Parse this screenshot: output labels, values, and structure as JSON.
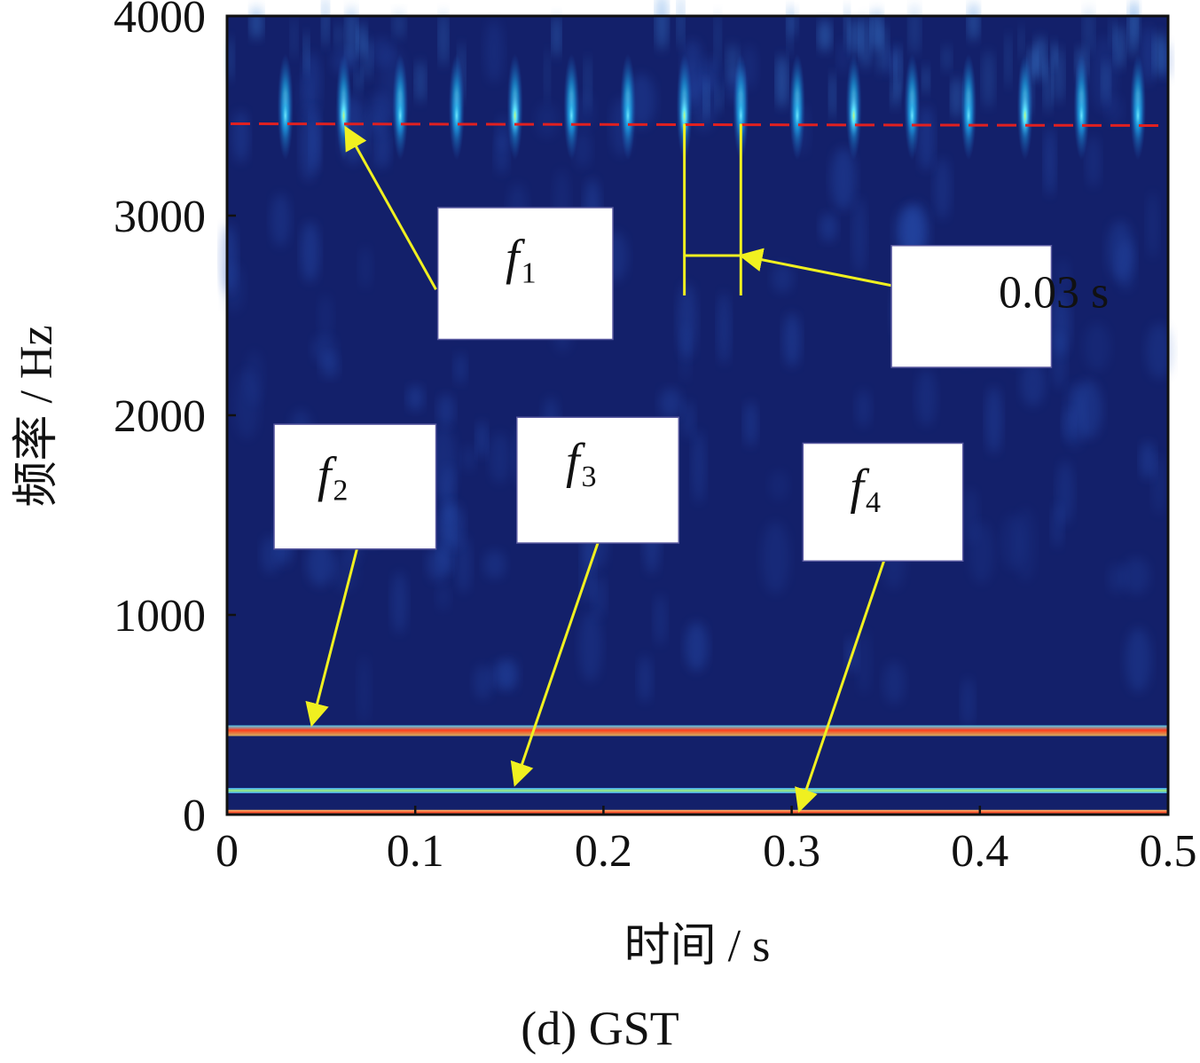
{
  "caption": "(d) GST",
  "chart_data": {
    "type": "heatmap",
    "title": "",
    "xlabel": "时间 / s",
    "ylabel": "频率 / Hz",
    "xlim": [
      0,
      0.5
    ],
    "ylim": [
      0,
      4000
    ],
    "x_ticks": [
      0,
      0.1,
      0.2,
      0.3,
      0.4,
      0.5
    ],
    "x_tick_labels": [
      "0",
      "0.1",
      "0.2",
      "0.3",
      "0.4",
      "0.5"
    ],
    "y_ticks": [
      0,
      1000,
      2000,
      3000,
      4000
    ],
    "y_tick_labels": [
      "0",
      "1000",
      "2000",
      "3000",
      "4000"
    ],
    "grid": false,
    "colormap": "jet",
    "background_color": "#13206a",
    "line_components": [
      {
        "label": "f2",
        "frequency_hz": 420,
        "color": "#ff4a2a"
      },
      {
        "label": "f3",
        "frequency_hz": 120,
        "color": "#7ee07a"
      },
      {
        "label": "f4",
        "frequency_hz": 10,
        "color": "#ff6a3a"
      }
    ],
    "reference_line": {
      "frequency_hz": 3460,
      "color": "#e02020",
      "style": "dashed"
    },
    "impulse_component": {
      "label": "f1",
      "frequency_hz": 3500,
      "times_s": [
        0.031,
        0.062,
        0.092,
        0.122,
        0.153,
        0.183,
        0.213,
        0.243,
        0.273,
        0.303,
        0.333,
        0.364,
        0.394,
        0.424,
        0.454,
        0.484
      ]
    },
    "period_marker": {
      "t_start_s": 0.243,
      "t_end_s": 0.273,
      "y_hz": 2800,
      "label": "0.03 s"
    },
    "annotations": [
      {
        "id": "f1",
        "main": "f",
        "sub": "1",
        "box": {
          "x0": 0.112,
          "x1": 0.205,
          "y0": 2380,
          "y1": 3040
        },
        "text": {
          "x": 0.148,
          "y": 2710
        },
        "from": {
          "x": 0.111,
          "y": 2630
        },
        "to": {
          "x": 0.063,
          "y": 3440
        }
      },
      {
        "id": "f2",
        "main": "f",
        "sub": "2",
        "box": {
          "x0": 0.025,
          "x1": 0.111,
          "y0": 1330,
          "y1": 1955
        },
        "text": {
          "x": 0.048,
          "y": 1620
        },
        "from": {
          "x": 0.069,
          "y": 1330
        },
        "to": {
          "x": 0.045,
          "y": 450
        }
      },
      {
        "id": "f3",
        "main": "f",
        "sub": "3",
        "box": {
          "x0": 0.154,
          "x1": 0.24,
          "y0": 1360,
          "y1": 1990
        },
        "text": {
          "x": 0.18,
          "y": 1690
        },
        "from": {
          "x": 0.197,
          "y": 1360
        },
        "to": {
          "x": 0.153,
          "y": 150
        }
      },
      {
        "id": "f4",
        "main": "f",
        "sub": "4",
        "box": {
          "x0": 0.306,
          "x1": 0.391,
          "y0": 1270,
          "y1": 1860
        },
        "text": {
          "x": 0.331,
          "y": 1560
        },
        "from": {
          "x": 0.349,
          "y": 1270
        },
        "to": {
          "x": 0.304,
          "y": 20
        }
      },
      {
        "id": "period",
        "main": "0.03 s",
        "sub": "",
        "box": {
          "x0": 0.353,
          "x1": 0.438,
          "y0": 2240,
          "y1": 2850
        },
        "text": {
          "x": 0.41,
          "y": 2540
        },
        "from": {
          "x": 0.353,
          "y": 2650
        },
        "to": {
          "x": 0.273,
          "y": 2800
        }
      }
    ]
  }
}
